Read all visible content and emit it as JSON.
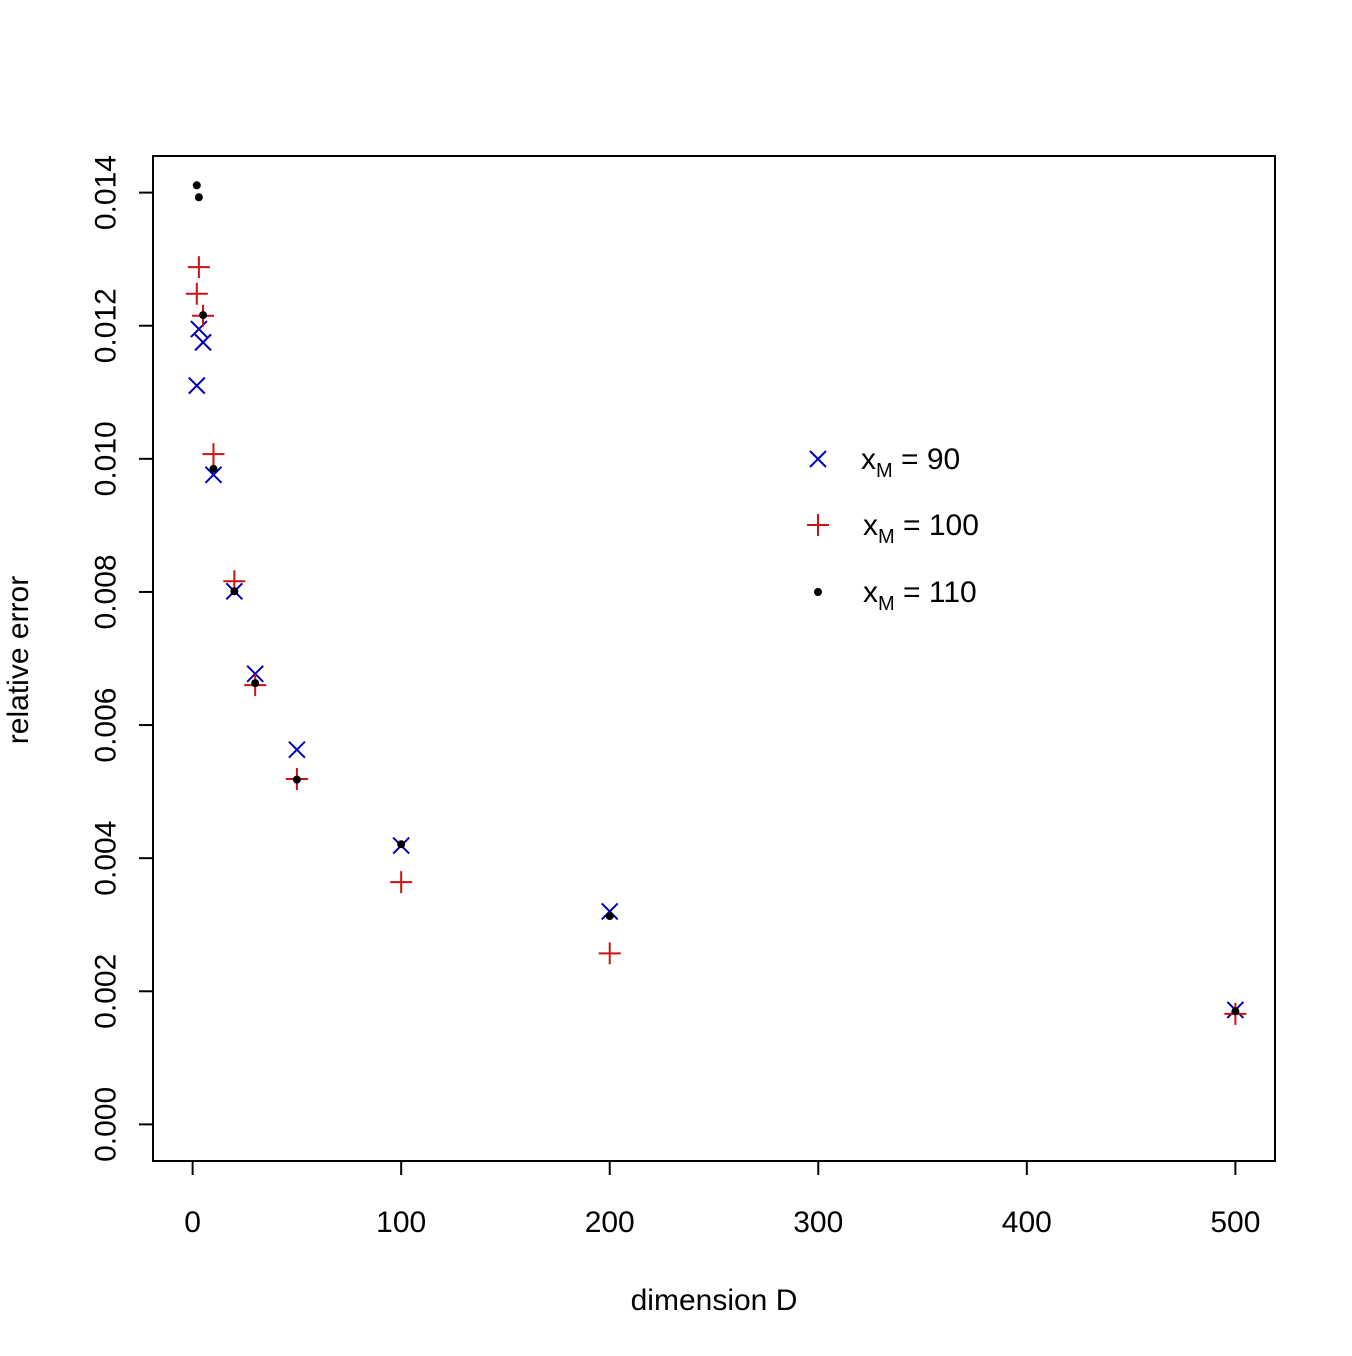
{
  "chart_data": {
    "type": "scatter",
    "title": "",
    "xlabel": "dimension D",
    "ylabel": "relative error",
    "xlim": [
      -19,
      519
    ],
    "ylim": [
      -0.00055,
      0.01455
    ],
    "xticks": [
      "0",
      "100",
      "200",
      "300",
      "400",
      "500"
    ],
    "yticks": [
      "0.000",
      "0.002",
      "0.004",
      "0.006",
      "0.008",
      "0.010",
      "0.012",
      "0.014"
    ],
    "grid": false,
    "legend_position": "center-right",
    "series": [
      {
        "name": "x_M = 90",
        "name_main": "x",
        "name_sub": "M",
        "name_rest": " = 90",
        "marker": "x",
        "color": "#0000bb",
        "x": [
          2,
          3,
          5,
          10,
          20,
          30,
          50,
          100,
          200,
          500
        ],
        "y": [
          0.0111,
          0.01195,
          0.01175,
          0.00976,
          0.00801,
          0.00677,
          0.00563,
          0.00419,
          0.0032,
          0.00172
        ]
      },
      {
        "name": "x_M = 100",
        "name_main": "x",
        "name_sub": "M",
        "name_rest": " = 100",
        "marker": "+",
        "color": "#cc1111",
        "x": [
          2,
          3,
          5,
          10,
          20,
          30,
          50,
          100,
          200,
          500
        ],
        "y": [
          0.01248,
          0.01288,
          0.01215,
          0.01007,
          0.00816,
          0.0066,
          0.00519,
          0.00364,
          0.00257,
          0.00166
        ]
      },
      {
        "name": "x_M = 110",
        "name_main": "x",
        "name_sub": "M",
        "name_rest": " = 110",
        "marker": "dot",
        "color": "#000000",
        "x": [
          2,
          3,
          5,
          10,
          20,
          30,
          50,
          100,
          200,
          500
        ],
        "y": [
          0.01411,
          0.01393,
          0.01216,
          0.00985,
          0.00801,
          0.00663,
          0.00518,
          0.00421,
          0.00313,
          0.0017
        ]
      }
    ]
  }
}
